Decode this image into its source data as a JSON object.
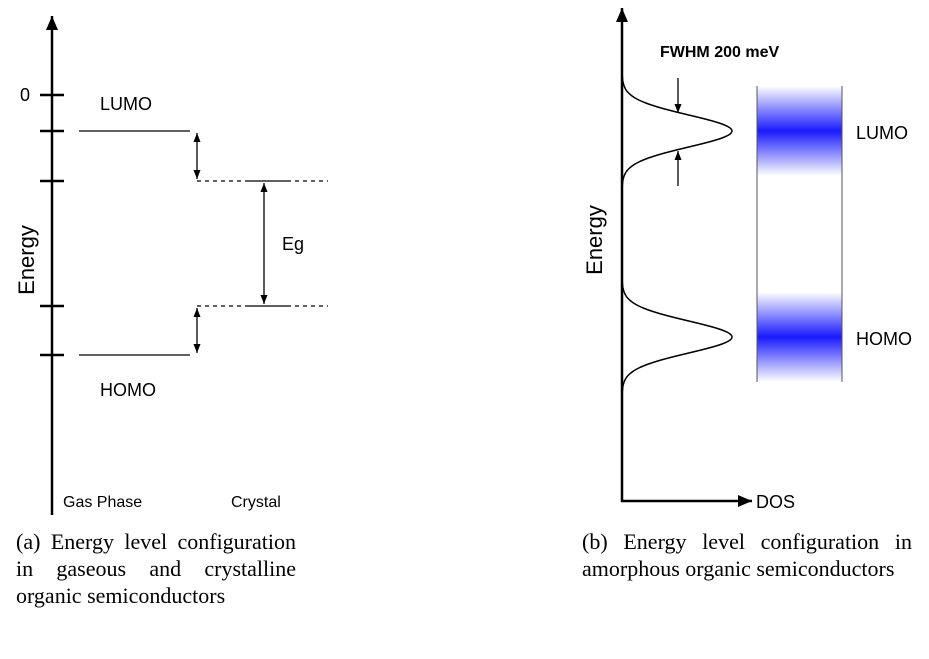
{
  "panel_a": {
    "zero_tick_label": "0",
    "axis_label": "Energy",
    "gas_lumo_label": "LUMO",
    "gas_homo_label": "HOMO",
    "gap_label": "Eg",
    "gas_phase_label": "Gas Phase",
    "crystal_label": "Crystal",
    "caption_tag": "(a)",
    "caption_text": "Energy level configuration in gaseous and crystalline organic semiconductors"
  },
  "panel_b": {
    "axis_label": "Energy",
    "x_axis_label": "DOS",
    "fwhm_label": "FWHM 200 meV",
    "lumo_label": "LUMO",
    "homo_label": "HOMO",
    "band_color": "#1a1aff",
    "caption_tag": "(b)",
    "caption_text": "Energy level configuration in amorphous organic semiconductors"
  }
}
